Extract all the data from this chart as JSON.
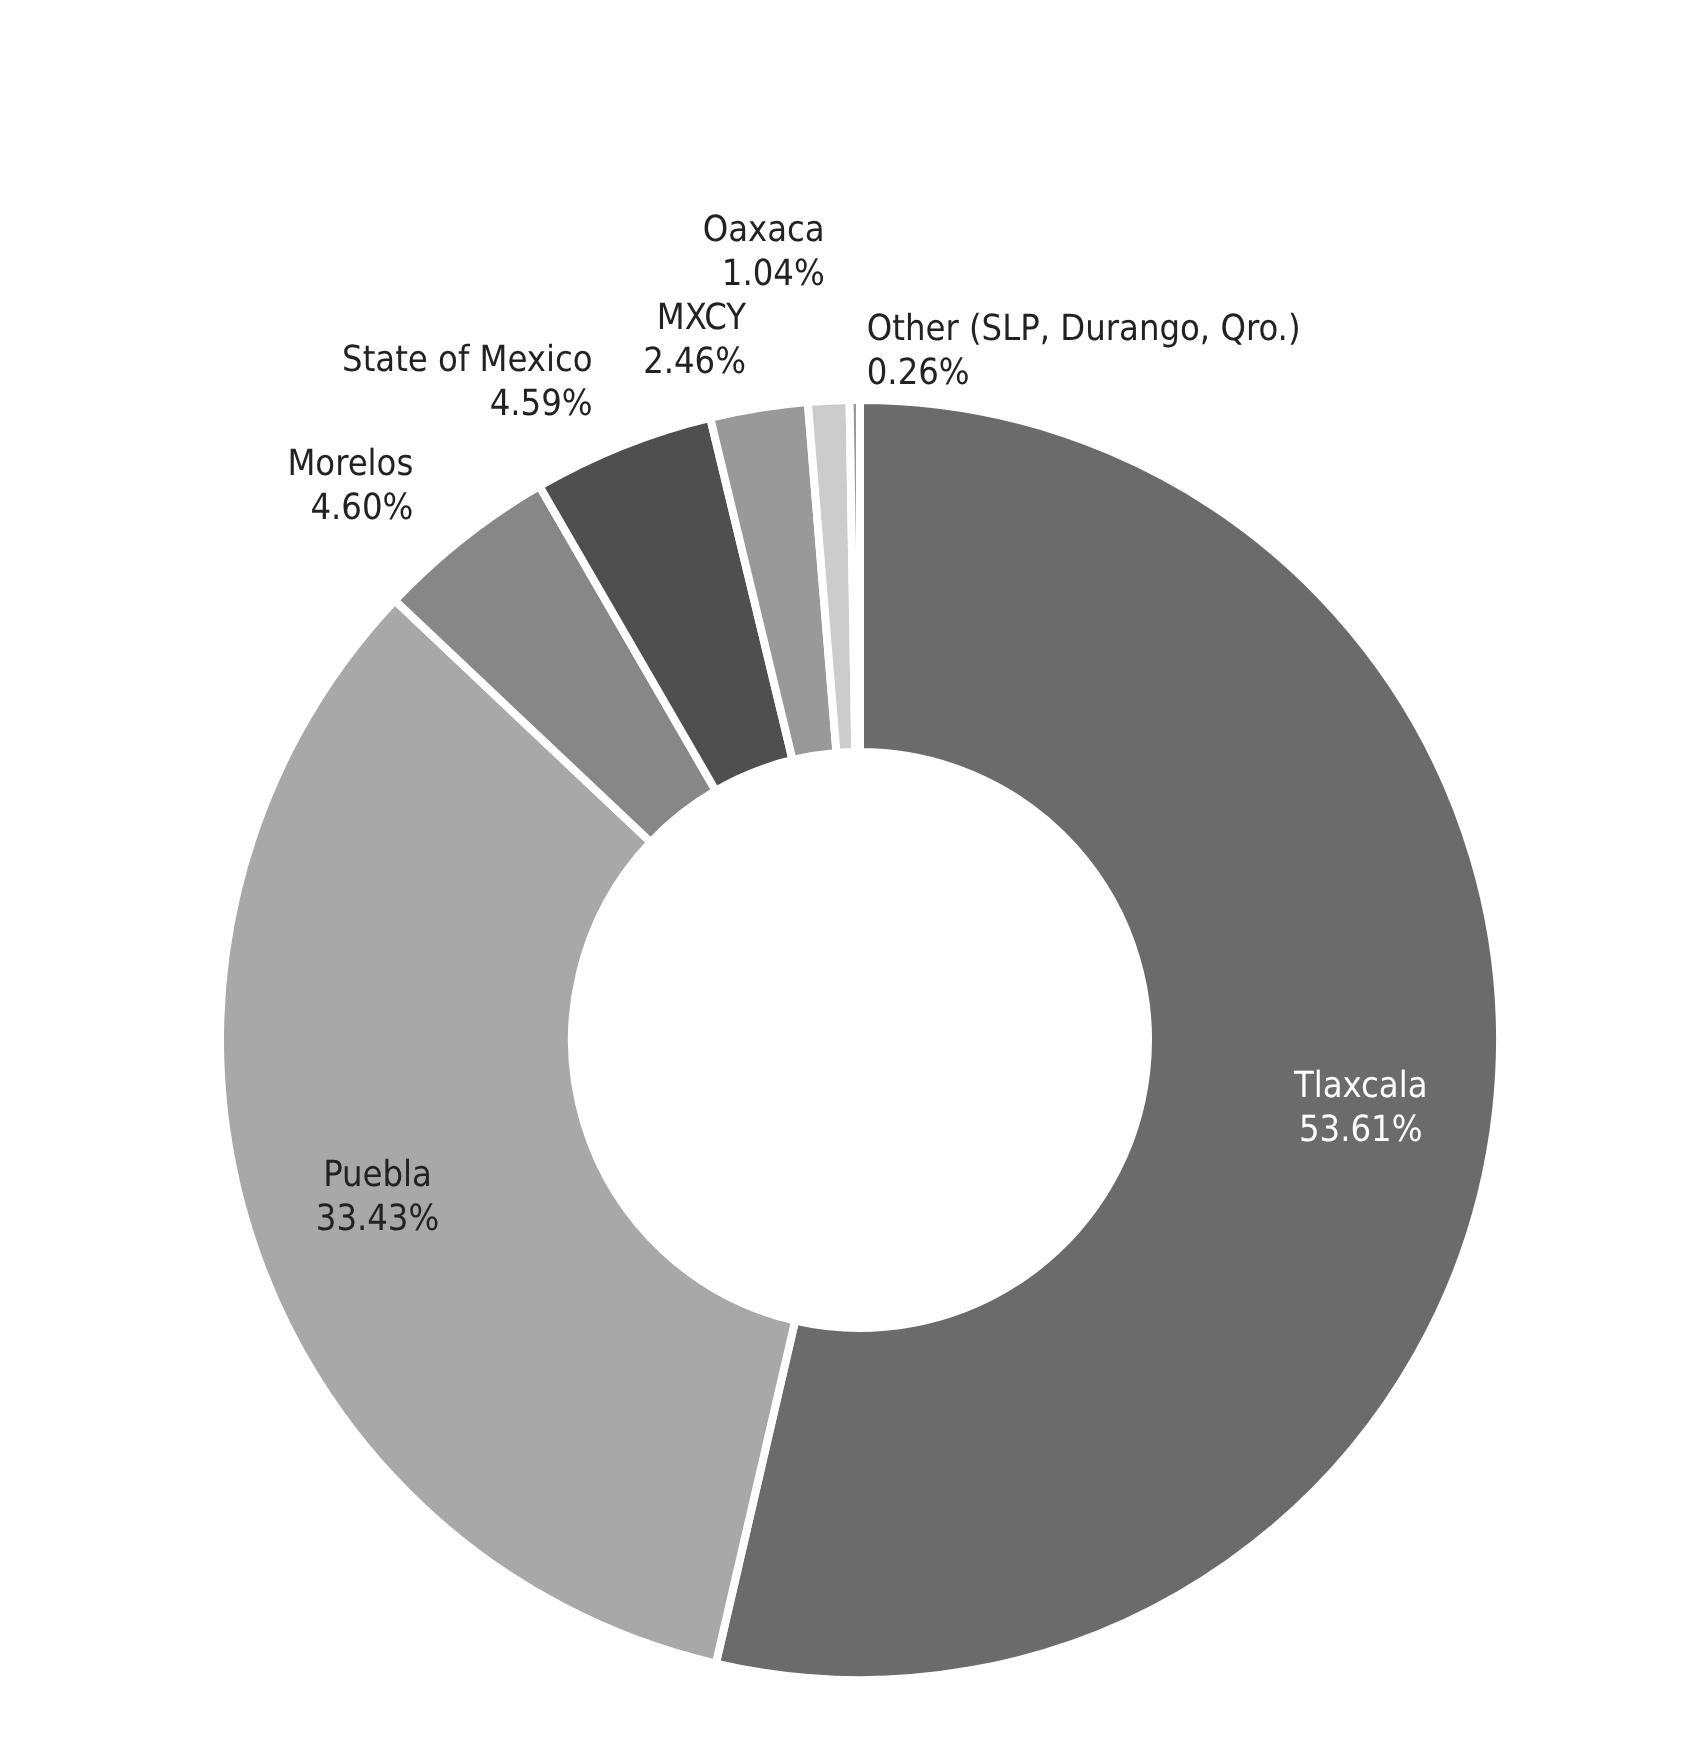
{
  "chart_data": {
    "type": "donut",
    "categories": [
      "Tlaxcala",
      "Puebla",
      "Morelos",
      "State of Mexico",
      "MXCY",
      "Oaxaca",
      "Other (SLP, Durango, Qro.)"
    ],
    "values": [
      53.61,
      33.43,
      4.6,
      4.59,
      2.46,
      1.04,
      0.26
    ],
    "value_labels": [
      "53.61%",
      "33.43%",
      "4.60%",
      "4.59%",
      "2.46%",
      "1.04%",
      "0.26%"
    ],
    "colors": [
      "#6b6b6b",
      "#a8a8a8",
      "#878787",
      "#4f4f4f",
      "#999999",
      "#cccccc",
      "#9a9a9a"
    ]
  }
}
